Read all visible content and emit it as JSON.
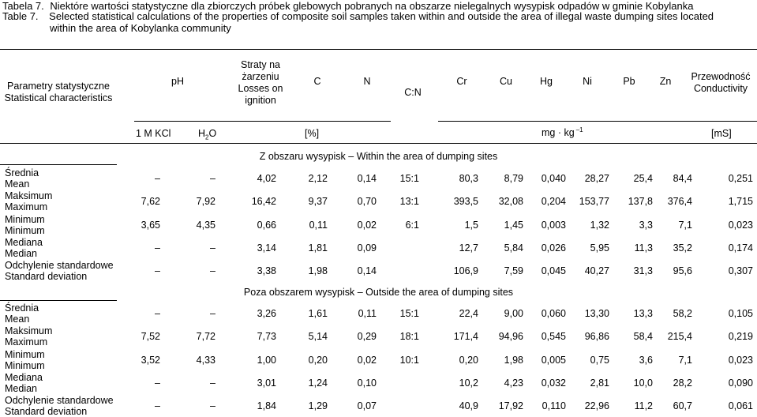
{
  "caption": {
    "pl_label": "Tabela 7.",
    "pl_text": "Niektóre wartości statystyczne dla zbiorczych próbek glebowych pobranych na obszarze nielegalnych wysypisk odpadów w gminie Kobylanka",
    "en_label": "Table 7.",
    "en_text_1": "Selected statistical calculations of the properties of  composite soil samples taken within and outside the area of illegal waste dumping sites located",
    "en_text_2": "within the area of Kobylanka community"
  },
  "headers": {
    "param_pl": "Parametry statystyczne",
    "param_en": "Statistical characteristics",
    "ph": "pH",
    "loss_1": "Straty na",
    "loss_2": "żarzeniu",
    "loss_3": "Losses on",
    "loss_4": "ignition",
    "c": "C",
    "n": "N",
    "cn": "C:N",
    "cr": "Cr",
    "cu": "Cu",
    "hg": "Hg",
    "ni": "Ni",
    "pb": "Pb",
    "zn": "Zn",
    "cond_1": "Przewodność",
    "cond_2": "Conductivity"
  },
  "units": {
    "kcl": "1 M KCl",
    "h2o_h": "H",
    "h2o_2": "2",
    "h2o_o": "O",
    "pct": "[%]",
    "mgkg_main": "mg · kg",
    "mgkg_sup": "–1",
    "ms": "[mS]"
  },
  "sections": [
    {
      "title": "Z obszaru wysypisk – Within the area of dumping sites",
      "rows": [
        {
          "label_pl": "Średnia",
          "label_en": "Mean",
          "values": [
            "–",
            "–",
            "4,02",
            "2,12",
            "0,14",
            "15:1",
            "80,3",
            "8,79",
            "0,040",
            "28,27",
            "25,4",
            "84,4",
            "0,251"
          ]
        },
        {
          "label_pl": "Maksimum",
          "label_en": "Maximum",
          "values": [
            "7,62",
            "7,92",
            "16,42",
            "9,37",
            "0,70",
            "13:1",
            "393,5",
            "32,08",
            "0,204",
            "153,77",
            "137,8",
            "376,4",
            "1,715"
          ]
        },
        {
          "label_pl": "Minimum",
          "label_en": "Minimum",
          "values": [
            "3,65",
            "4,35",
            "0,66",
            "0,11",
            "0,02",
            "6:1",
            "1,5",
            "1,45",
            "0,003",
            "1,32",
            "3,3",
            "7,1",
            "0,023"
          ]
        },
        {
          "label_pl": "Mediana",
          "label_en": "Median",
          "values": [
            "–",
            "–",
            "3,14",
            "1,81",
            "0,09",
            "",
            "12,7",
            "5,84",
            "0,026",
            "5,95",
            "11,3",
            "35,2",
            "0,174"
          ]
        },
        {
          "label_pl": "Odchylenie standardowe",
          "label_en": "Standard deviation",
          "values": [
            "–",
            "–",
            "3,38",
            "1,98",
            "0,14",
            "",
            "106,9",
            "7,59",
            "0,045",
            "40,27",
            "31,3",
            "95,6",
            "0,307"
          ]
        }
      ]
    },
    {
      "title": "Poza obszarem wysypisk – Outside the area of dumping sites",
      "rows": [
        {
          "label_pl": "Średnia",
          "label_en": "Mean",
          "values": [
            "–",
            "–",
            "3,26",
            "1,61",
            "0,11",
            "15:1",
            "22,4",
            "9,00",
            "0,060",
            "13,30",
            "13,3",
            "58,2",
            "0,105"
          ]
        },
        {
          "label_pl": "Maksimum",
          "label_en": "Maximum",
          "values": [
            "7,52",
            "7,72",
            "7,73",
            "5,14",
            "0,29",
            "18:1",
            "171,4",
            "94,96",
            "0,545",
            "96,86",
            "58,4",
            "215,4",
            "0,219"
          ]
        },
        {
          "label_pl": "Minimum",
          "label_en": "Minimum",
          "values": [
            "3,52",
            "4,33",
            "1,00",
            "0,20",
            "0,02",
            "10:1",
            "0,20",
            "1,98",
            "0,005",
            "0,75",
            "3,6",
            "7,1",
            "0,023"
          ]
        },
        {
          "label_pl": "Mediana",
          "label_en": "Median",
          "values": [
            "–",
            "–",
            "3,01",
            "1,24",
            "0,10",
            "",
            "10,2",
            "4,23",
            "0,032",
            "2,81",
            "10,0",
            "28,2",
            "0,090"
          ]
        },
        {
          "label_pl": "Odchylenie standardowe",
          "label_en": "Standard deviation",
          "values": [
            "–",
            "–",
            "1,84",
            "1,29",
            "0,07",
            "",
            "40,9",
            "17,92",
            "0,110",
            "22,96",
            "11,2",
            "60,7",
            "0,061"
          ]
        }
      ]
    }
  ]
}
